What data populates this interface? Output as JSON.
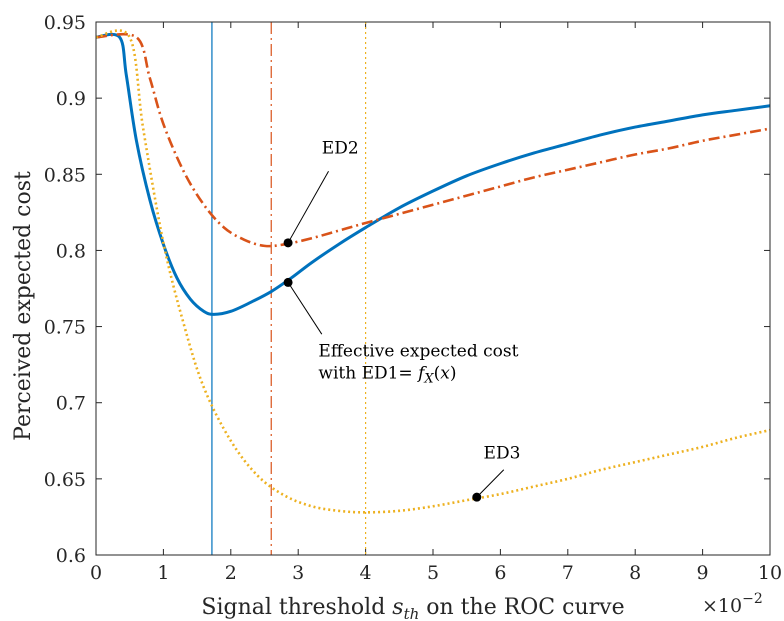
{
  "chart_data": {
    "type": "line",
    "xlabel": "Signal threshold s_th on the ROC curve",
    "xlabel_parts": {
      "pre": "Signal threshold ",
      "var": "s",
      "sub": "th",
      "post": " on the ROC curve"
    },
    "x_multiplier": "×10",
    "x_multiplier_exp": "−2",
    "ylabel": "Perceived expected cost",
    "xlim": [
      0,
      10
    ],
    "ylim": [
      0.6,
      0.95
    ],
    "xticks": [
      0,
      1,
      2,
      3,
      4,
      5,
      6,
      7,
      8,
      9,
      10
    ],
    "yticks": [
      0.6,
      0.65,
      0.7,
      0.75,
      0.8,
      0.85,
      0.9,
      0.95
    ],
    "grid": false,
    "series": [
      {
        "key": "ed1",
        "color": "#0072BD",
        "style": "solid",
        "x": [
          0,
          0.35,
          0.45,
          0.6,
          0.8,
          1.0,
          1.2,
          1.4,
          1.6,
          1.75,
          2.0,
          2.3,
          2.6,
          2.9,
          3.2,
          3.6,
          4.0,
          4.5,
          5.0,
          5.5,
          6.0,
          6.5,
          7.0,
          7.5,
          8.0,
          8.5,
          9.0,
          9.5,
          10.0
        ],
        "y": [
          0.94,
          0.94,
          0.915,
          0.872,
          0.833,
          0.804,
          0.782,
          0.768,
          0.76,
          0.758,
          0.76,
          0.766,
          0.773,
          0.782,
          0.792,
          0.804,
          0.815,
          0.828,
          0.839,
          0.849,
          0.857,
          0.864,
          0.87,
          0.876,
          0.881,
          0.885,
          0.889,
          0.892,
          0.895
        ]
      },
      {
        "key": "ed2",
        "color": "#D95319",
        "style": "dashdot",
        "x": [
          0,
          0.6,
          0.8,
          1.0,
          1.3,
          1.6,
          1.9,
          2.2,
          2.5,
          2.8,
          3.2,
          3.6,
          4.0,
          4.5,
          5.0,
          5.5,
          6.0,
          6.5,
          7.0,
          7.5,
          8.0,
          8.5,
          9.0,
          9.5,
          10.0
        ],
        "y": [
          0.94,
          0.94,
          0.913,
          0.883,
          0.852,
          0.83,
          0.815,
          0.807,
          0.803,
          0.804,
          0.808,
          0.813,
          0.818,
          0.824,
          0.83,
          0.836,
          0.842,
          0.848,
          0.853,
          0.858,
          0.863,
          0.867,
          0.872,
          0.876,
          0.88
        ]
      },
      {
        "key": "ed3",
        "color": "#EDB120",
        "style": "dotted",
        "x": [
          0,
          0.5,
          0.7,
          1.0,
          1.3,
          1.6,
          2.0,
          2.4,
          2.8,
          3.2,
          3.6,
          4.0,
          4.5,
          5.0,
          5.5,
          6.0,
          6.5,
          7.0,
          7.5,
          8.0,
          8.5,
          9.0,
          9.5,
          10.0
        ],
        "y": [
          0.94,
          0.94,
          0.88,
          0.805,
          0.752,
          0.71,
          0.675,
          0.652,
          0.639,
          0.632,
          0.629,
          0.628,
          0.629,
          0.632,
          0.636,
          0.64,
          0.645,
          0.65,
          0.656,
          0.661,
          0.666,
          0.671,
          0.677,
          0.682
        ]
      }
    ],
    "vlines": [
      {
        "x": 1.72,
        "color": "#0072BD",
        "style": "solid"
      },
      {
        "x": 2.6,
        "color": "#D95319",
        "style": "dashdot"
      },
      {
        "x": 4.0,
        "color": "#EDB120",
        "style": "dotted"
      }
    ],
    "annotations": [
      {
        "key": "ed2",
        "point": [
          2.85,
          0.805
        ],
        "text_x": 3.35,
        "text_y": 0.8635,
        "lines": [
          "ED2"
        ],
        "line_end": [
          3.45,
          0.852
        ]
      },
      {
        "key": "ed1",
        "point": [
          2.85,
          0.779
        ],
        "text_x": 3.3,
        "text_y": 0.7305,
        "lines": [
          "Effective expected cost",
          "with ED1= "
        ],
        "math": "f",
        "math_sub": "X",
        "math_arg": "(x)",
        "line_end": [
          3.35,
          0.745
        ]
      },
      {
        "key": "ed3",
        "point": [
          5.65,
          0.638
        ],
        "text_x": 5.75,
        "text_y": 0.6635,
        "lines": [
          "ED3"
        ],
        "line_end": [
          6.05,
          0.656
        ]
      }
    ]
  }
}
